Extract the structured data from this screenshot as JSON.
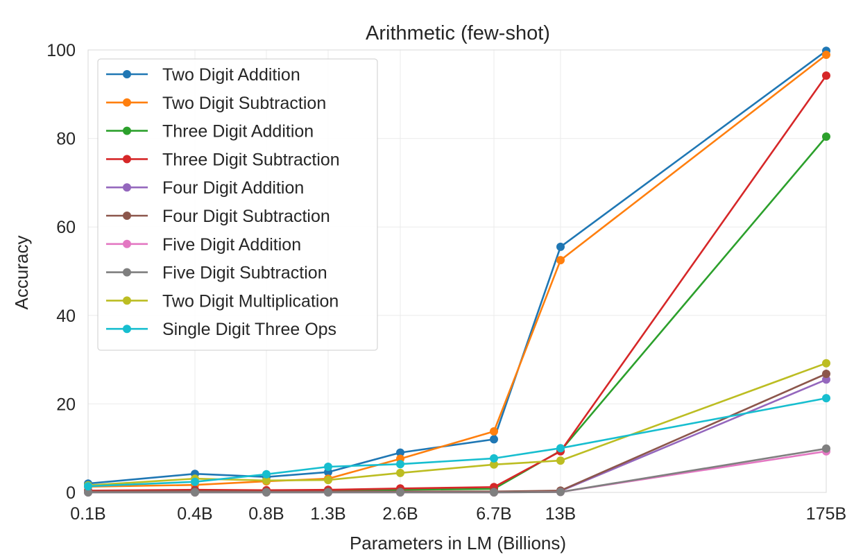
{
  "chart_data": {
    "type": "line",
    "title": "Arithmetic (few-shot)",
    "xlabel": "Parameters in LM (Billions)",
    "ylabel": "Accuracy",
    "x_ticks": [
      "0.1B",
      "0.4B",
      "0.8B",
      "1.3B",
      "2.6B",
      "6.7B",
      "13B",
      "175B"
    ],
    "x_scale": "categorical-log-like",
    "y_ticks": [
      "0",
      "20",
      "40",
      "60",
      "80",
      "100"
    ],
    "ylim": [
      0,
      100
    ],
    "grid": true,
    "legend_position": "top-left",
    "series": [
      {
        "name": "Two Digit Addition",
        "color": "#1f77b4",
        "values": [
          2.0,
          4.2,
          3.5,
          4.6,
          9.0,
          12.0,
          55.5,
          99.8
        ]
      },
      {
        "name": "Two Digit Subtraction",
        "color": "#ff7f0e",
        "values": [
          1.3,
          1.7,
          2.5,
          3.1,
          7.6,
          13.8,
          52.5,
          98.9
        ]
      },
      {
        "name": "Three Digit Addition",
        "color": "#2ca02c",
        "values": [
          0.3,
          0.4,
          0.4,
          0.5,
          0.6,
          0.8,
          9.4,
          80.4
        ]
      },
      {
        "name": "Three Digit Subtraction",
        "color": "#d62728",
        "values": [
          0.4,
          0.6,
          0.5,
          0.6,
          0.9,
          1.2,
          9.3,
          94.2
        ]
      },
      {
        "name": "Four Digit Addition",
        "color": "#9467bd",
        "values": [
          0.1,
          0.1,
          0.1,
          0.1,
          0.1,
          0.1,
          0.3,
          25.5
        ]
      },
      {
        "name": "Four Digit Subtraction",
        "color": "#8c564b",
        "values": [
          0.2,
          0.3,
          0.2,
          0.2,
          0.2,
          0.2,
          0.4,
          26.8
        ]
      },
      {
        "name": "Five Digit Addition",
        "color": "#e377c2",
        "values": [
          0.0,
          0.0,
          0.0,
          0.0,
          0.0,
          0.0,
          0.1,
          9.3
        ]
      },
      {
        "name": "Five Digit Subtraction",
        "color": "#7f7f7f",
        "values": [
          0.0,
          0.0,
          0.0,
          0.0,
          0.0,
          0.0,
          0.1,
          9.9
        ]
      },
      {
        "name": "Two Digit Multiplication",
        "color": "#bcbd22",
        "values": [
          1.6,
          3.1,
          2.7,
          2.8,
          4.4,
          6.3,
          7.2,
          29.2
        ]
      },
      {
        "name": "Single Digit Three Ops",
        "color": "#17becf",
        "values": [
          1.4,
          2.4,
          4.1,
          5.8,
          6.4,
          7.7,
          10.0,
          21.3
        ]
      }
    ]
  }
}
